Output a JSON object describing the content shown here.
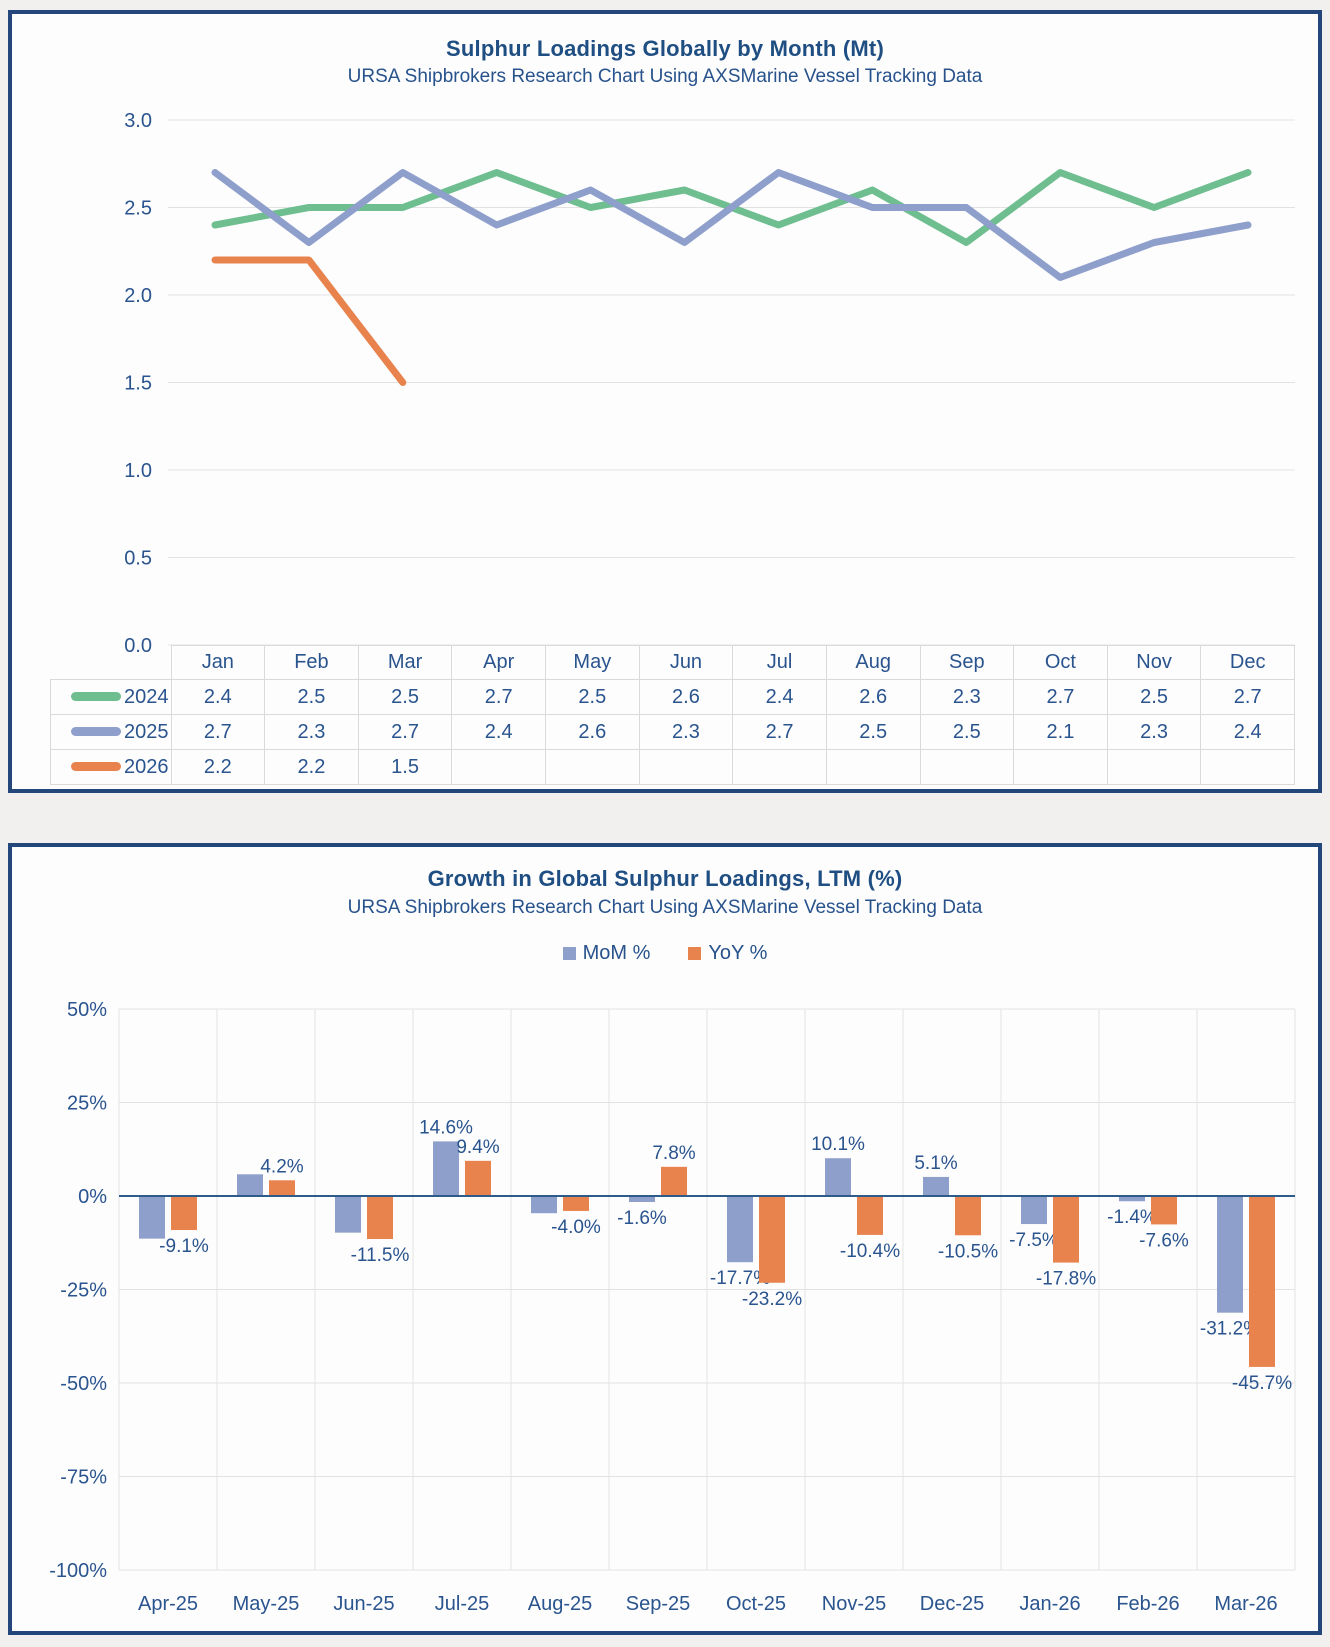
{
  "page": {
    "background": "#f1f0ef",
    "card_background": "#fdfdfe",
    "card_border_color": "#24477b",
    "title_color": "#1f4e82",
    "text_color": "#2a548e",
    "grid_color": "#e2e2e2",
    "axis_line_color": "#2e5c8a",
    "table_border_color": "#dadada"
  },
  "chart_data": [
    {
      "type": "line",
      "title": "Sulphur Loadings Globally by Month (Mt)",
      "subtitle": "URSA Shipbrokers Research Chart Using AXSMarine Vessel Tracking Data",
      "categories": [
        "Jan",
        "Feb",
        "Mar",
        "Apr",
        "May",
        "Jun",
        "Jul",
        "Aug",
        "Sep",
        "Oct",
        "Nov",
        "Dec"
      ],
      "ylim": [
        0.0,
        3.0
      ],
      "ytick_step": 0.5,
      "yticks": [
        "3.0",
        "2.5",
        "2.0",
        "1.5",
        "1.0",
        "0.5",
        "0.0"
      ],
      "grid": true,
      "legend_position": "table-left",
      "series": [
        {
          "name": "2024",
          "color": "#6fbe90",
          "values": [
            2.4,
            2.5,
            2.5,
            2.7,
            2.5,
            2.6,
            2.4,
            2.6,
            2.3,
            2.7,
            2.5,
            2.7
          ]
        },
        {
          "name": "2025",
          "color": "#8e9fcb",
          "values": [
            2.7,
            2.3,
            2.7,
            2.4,
            2.6,
            2.3,
            2.7,
            2.5,
            2.5,
            2.1,
            2.3,
            2.4
          ]
        },
        {
          "name": "2026",
          "color": "#e8834e",
          "values": [
            2.2,
            2.2,
            1.5
          ]
        }
      ]
    },
    {
      "type": "bar",
      "title": "Growth in Global Sulphur Loadings, LTM (%)",
      "subtitle": "URSA Shipbrokers Research Chart Using AXSMarine Vessel Tracking Data",
      "categories": [
        "Apr-25",
        "May-25",
        "Jun-25",
        "Jul-25",
        "Aug-25",
        "Sep-25",
        "Oct-25",
        "Nov-25",
        "Dec-25",
        "Jan-26",
        "Feb-26",
        "Mar-26"
      ],
      "ylim": [
        -100,
        50
      ],
      "ytick_step": 25,
      "yticks": [
        "50%",
        "25%",
        "0%",
        "-25%",
        "-50%",
        "-75%",
        "-100%"
      ],
      "grid": true,
      "legend_position": "top",
      "series": [
        {
          "name": "MoM %",
          "color": "#8e9fcb",
          "values": [
            -11.4,
            5.8,
            -9.8,
            14.6,
            -4.6,
            -1.6,
            -17.7,
            10.1,
            5.1,
            -7.5,
            -1.4,
            -31.2
          ],
          "labels": [
            "",
            "",
            "",
            "14.6%",
            "",
            "-1.6%",
            "-17.7%",
            "10.1%",
            "5.1%",
            "-7.5%",
            "-1.4%",
            "-31.2%"
          ]
        },
        {
          "name": "YoY %",
          "color": "#e8834e",
          "values": [
            -9.1,
            4.2,
            -11.5,
            9.4,
            -4.0,
            7.8,
            -23.2,
            -10.4,
            -10.5,
            -17.8,
            -7.6,
            -45.7
          ],
          "labels": [
            "-9.1%",
            "4.2%",
            "-11.5%",
            "9.4%",
            "-4.0%",
            "7.8%",
            "-23.2%",
            "-10.4%",
            "-10.5%",
            "-17.8%",
            "-7.6%",
            "-45.7%"
          ]
        }
      ]
    }
  ]
}
